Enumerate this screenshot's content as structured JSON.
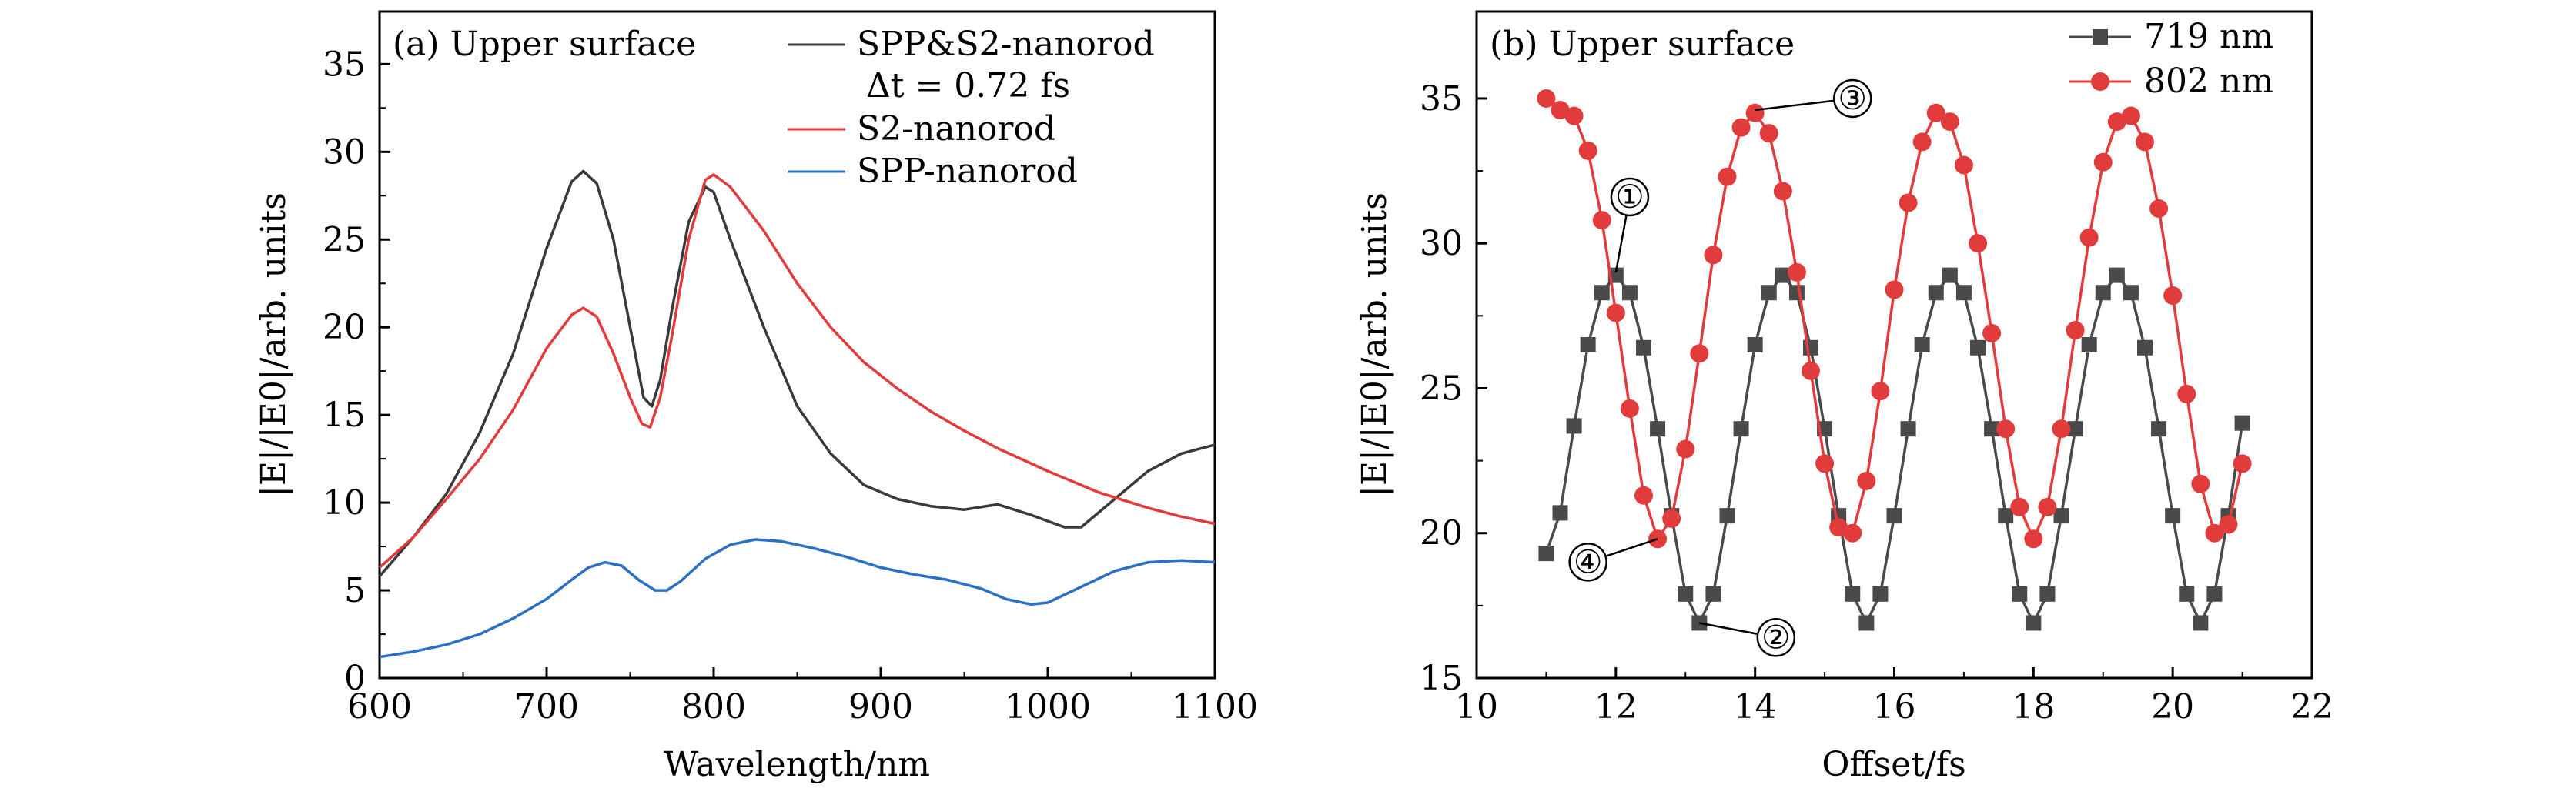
{
  "chart_data": [
    {
      "type": "line",
      "panel_label": "(a) Upper surface",
      "xlabel": "Wavelength/nm",
      "ylabel": "|E|/|E0|/arb. units",
      "xlim": [
        600,
        1100
      ],
      "ylim": [
        0,
        38
      ],
      "xticks": [
        "600",
        "700",
        "800",
        "900",
        "1000",
        "1100"
      ],
      "yticks": [
        "0",
        "5",
        "10",
        "15",
        "20",
        "25",
        "30",
        "35"
      ],
      "legend_position": "top-right",
      "series": [
        {
          "name": "SPP&S2-nanorod",
          "name_line2": "Δt = 0.72 fs",
          "color": "#3a3a3a",
          "points": [
            [
              600,
              5.8
            ],
            [
              620,
              8.0
            ],
            [
              640,
              10.5
            ],
            [
              660,
              14.0
            ],
            [
              680,
              18.5
            ],
            [
              700,
              24.5
            ],
            [
              715,
              28.3
            ],
            [
              722,
              28.9
            ],
            [
              730,
              28.2
            ],
            [
              740,
              25.0
            ],
            [
              750,
              20.0
            ],
            [
              758,
              16.0
            ],
            [
              763,
              15.5
            ],
            [
              768,
              17.0
            ],
            [
              775,
              21.0
            ],
            [
              785,
              26.0
            ],
            [
              795,
              28.0
            ],
            [
              800,
              27.7
            ],
            [
              810,
              25.0
            ],
            [
              830,
              20.0
            ],
            [
              850,
              15.5
            ],
            [
              870,
              12.8
            ],
            [
              890,
              11.0
            ],
            [
              910,
              10.2
            ],
            [
              930,
              9.8
            ],
            [
              950,
              9.6
            ],
            [
              970,
              9.9
            ],
            [
              990,
              9.3
            ],
            [
              1010,
              8.6
            ],
            [
              1020,
              8.6
            ],
            [
              1040,
              10.2
            ],
            [
              1060,
              11.8
            ],
            [
              1080,
              12.8
            ],
            [
              1100,
              13.3
            ]
          ]
        },
        {
          "name": "S2-nanorod",
          "color": "#e23b3b",
          "points": [
            [
              600,
              6.3
            ],
            [
              620,
              8.0
            ],
            [
              640,
              10.2
            ],
            [
              660,
              12.5
            ],
            [
              680,
              15.3
            ],
            [
              700,
              18.8
            ],
            [
              715,
              20.7
            ],
            [
              722,
              21.1
            ],
            [
              730,
              20.6
            ],
            [
              740,
              18.5
            ],
            [
              750,
              16.0
            ],
            [
              757,
              14.5
            ],
            [
              762,
              14.3
            ],
            [
              768,
              16.0
            ],
            [
              775,
              19.5
            ],
            [
              785,
              25.0
            ],
            [
              795,
              28.4
            ],
            [
              800,
              28.7
            ],
            [
              810,
              28.0
            ],
            [
              830,
              25.5
            ],
            [
              850,
              22.5
            ],
            [
              870,
              20.0
            ],
            [
              890,
              18.0
            ],
            [
              910,
              16.5
            ],
            [
              930,
              15.2
            ],
            [
              950,
              14.1
            ],
            [
              970,
              13.1
            ],
            [
              1000,
              11.8
            ],
            [
              1030,
              10.6
            ],
            [
              1060,
              9.7
            ],
            [
              1080,
              9.2
            ],
            [
              1100,
              8.8
            ]
          ]
        },
        {
          "name": "SPP-nanorod",
          "color": "#2a70c8",
          "points": [
            [
              600,
              1.2
            ],
            [
              620,
              1.5
            ],
            [
              640,
              1.9
            ],
            [
              660,
              2.5
            ],
            [
              680,
              3.4
            ],
            [
              700,
              4.5
            ],
            [
              715,
              5.6
            ],
            [
              725,
              6.3
            ],
            [
              735,
              6.6
            ],
            [
              745,
              6.4
            ],
            [
              755,
              5.6
            ],
            [
              765,
              5.0
            ],
            [
              772,
              5.0
            ],
            [
              780,
              5.5
            ],
            [
              795,
              6.8
            ],
            [
              810,
              7.6
            ],
            [
              825,
              7.9
            ],
            [
              840,
              7.8
            ],
            [
              860,
              7.4
            ],
            [
              880,
              6.9
            ],
            [
              900,
              6.3
            ],
            [
              920,
              5.9
            ],
            [
              940,
              5.6
            ],
            [
              960,
              5.1
            ],
            [
              975,
              4.5
            ],
            [
              990,
              4.2
            ],
            [
              1000,
              4.3
            ],
            [
              1020,
              5.2
            ],
            [
              1040,
              6.1
            ],
            [
              1060,
              6.6
            ],
            [
              1080,
              6.7
            ],
            [
              1100,
              6.6
            ]
          ]
        }
      ]
    },
    {
      "type": "line",
      "panel_label": "(b) Upper surface",
      "xlabel": "Offset/fs",
      "ylabel": "|E|/|E0|/arb. units",
      "xlim": [
        10,
        22
      ],
      "ylim": [
        15,
        38
      ],
      "xticks": [
        "10",
        "12",
        "14",
        "16",
        "18",
        "20",
        "22"
      ],
      "yticks": [
        "15",
        "20",
        "25",
        "30",
        "35"
      ],
      "legend_position": "top-right",
      "series": [
        {
          "name": "719 nm",
          "color": "#4a4a4a",
          "marker": "square",
          "points": [
            [
              11.0,
              19.3
            ],
            [
              11.2,
              20.7
            ],
            [
              11.4,
              23.7
            ],
            [
              11.6,
              26.5
            ],
            [
              11.8,
              28.3
            ],
            [
              12.0,
              28.9
            ],
            [
              12.2,
              28.3
            ],
            [
              12.4,
              26.4
            ],
            [
              12.6,
              23.6
            ],
            [
              12.8,
              20.6
            ],
            [
              13.0,
              17.9
            ],
            [
              13.2,
              16.9
            ],
            [
              13.4,
              17.9
            ],
            [
              13.6,
              20.6
            ],
            [
              13.8,
              23.6
            ],
            [
              14.0,
              26.5
            ],
            [
              14.2,
              28.3
            ],
            [
              14.4,
              28.9
            ],
            [
              14.6,
              28.3
            ],
            [
              14.8,
              26.4
            ],
            [
              15.0,
              23.6
            ],
            [
              15.2,
              20.6
            ],
            [
              15.4,
              17.9
            ],
            [
              15.6,
              16.9
            ],
            [
              15.8,
              17.9
            ],
            [
              16.0,
              20.6
            ],
            [
              16.2,
              23.6
            ],
            [
              16.4,
              26.5
            ],
            [
              16.6,
              28.3
            ],
            [
              16.8,
              28.9
            ],
            [
              17.0,
              28.3
            ],
            [
              17.2,
              26.4
            ],
            [
              17.4,
              23.6
            ],
            [
              17.6,
              20.6
            ],
            [
              17.8,
              17.9
            ],
            [
              18.0,
              16.9
            ],
            [
              18.2,
              17.9
            ],
            [
              18.4,
              20.6
            ],
            [
              18.6,
              23.6
            ],
            [
              18.8,
              26.5
            ],
            [
              19.0,
              28.3
            ],
            [
              19.2,
              28.9
            ],
            [
              19.4,
              28.3
            ],
            [
              19.6,
              26.4
            ],
            [
              19.8,
              23.6
            ],
            [
              20.0,
              20.6
            ],
            [
              20.2,
              17.9
            ],
            [
              20.4,
              16.9
            ],
            [
              20.6,
              17.9
            ],
            [
              20.8,
              20.6
            ],
            [
              21.0,
              23.8
            ]
          ]
        },
        {
          "name": "802 nm",
          "color": "#e23b3b",
          "marker": "circle",
          "points": [
            [
              11.0,
              35.0
            ],
            [
              11.2,
              34.6
            ],
            [
              11.4,
              34.4
            ],
            [
              11.6,
              33.2
            ],
            [
              11.8,
              30.8
            ],
            [
              12.0,
              27.6
            ],
            [
              12.2,
              24.3
            ],
            [
              12.4,
              21.3
            ],
            [
              12.6,
              19.8
            ],
            [
              12.8,
              20.5
            ],
            [
              13.0,
              22.9
            ],
            [
              13.2,
              26.2
            ],
            [
              13.4,
              29.6
            ],
            [
              13.6,
              32.3
            ],
            [
              13.8,
              34.0
            ],
            [
              14.0,
              34.5
            ],
            [
              14.2,
              33.8
            ],
            [
              14.4,
              31.8
            ],
            [
              14.6,
              29.0
            ],
            [
              14.8,
              25.6
            ],
            [
              15.0,
              22.4
            ],
            [
              15.2,
              20.2
            ],
            [
              15.4,
              20.0
            ],
            [
              15.6,
              21.8
            ],
            [
              15.8,
              24.9
            ],
            [
              16.0,
              28.4
            ],
            [
              16.2,
              31.4
            ],
            [
              16.4,
              33.5
            ],
            [
              16.6,
              34.5
            ],
            [
              16.8,
              34.2
            ],
            [
              17.0,
              32.7
            ],
            [
              17.2,
              30.0
            ],
            [
              17.4,
              26.9
            ],
            [
              17.6,
              23.6
            ],
            [
              17.8,
              20.9
            ],
            [
              18.0,
              19.8
            ],
            [
              18.2,
              20.9
            ],
            [
              18.4,
              23.6
            ],
            [
              18.6,
              27.0
            ],
            [
              18.8,
              30.2
            ],
            [
              19.0,
              32.8
            ],
            [
              19.2,
              34.2
            ],
            [
              19.4,
              34.4
            ],
            [
              19.6,
              33.5
            ],
            [
              19.8,
              31.2
            ],
            [
              20.0,
              28.2
            ],
            [
              20.2,
              24.8
            ],
            [
              20.4,
              21.7
            ],
            [
              20.6,
              20.0
            ],
            [
              20.8,
              20.3
            ],
            [
              21.0,
              22.4
            ]
          ]
        }
      ],
      "annotations": [
        {
          "label": "①",
          "x": 12.0,
          "y": 29.0,
          "text_at": [
            12.2,
            31.6
          ]
        },
        {
          "label": "②",
          "x": 13.2,
          "y": 16.9,
          "text_at": [
            14.3,
            16.4
          ]
        },
        {
          "label": "③",
          "x": 14.0,
          "y": 34.6,
          "text_at": [
            15.4,
            35.0
          ]
        },
        {
          "label": "④",
          "x": 12.6,
          "y": 19.8,
          "text_at": [
            11.6,
            19.0
          ]
        }
      ]
    }
  ]
}
